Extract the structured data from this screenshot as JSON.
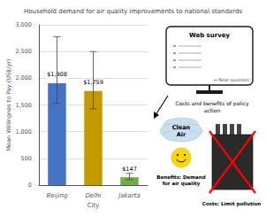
{
  "chart_data": {
    "type": "bar",
    "title": "Household demand for air quality improvements to national standards",
    "categories": [
      "Beijing",
      "Delhi",
      "Jakarta"
    ],
    "values": [
      1908,
      1759,
      147
    ],
    "value_labels": [
      "$1,908",
      "$1,759",
      "$147"
    ],
    "data_labels": true,
    "colors": [
      "#4472C4",
      "#C49A00",
      "#70AD47"
    ],
    "error_upper": [
      870,
      740,
      75
    ],
    "error_lower": [
      380,
      330,
      45
    ],
    "xlabel": "City",
    "ylabel": "Mean Willingnes to Pay (US$/yr)",
    "ylim": [
      0,
      3000
    ],
    "yticks": [
      0,
      500,
      1000,
      1500,
      2000,
      2500,
      3000
    ],
    "grid": true,
    "annotations": [
      "Web survey",
      "→ Next question",
      "Costs and benefits of policy",
      "action",
      "Clean\nAir",
      "Benefits: Demand\nfor air quality",
      "Costs: Limit pollution"
    ]
  }
}
